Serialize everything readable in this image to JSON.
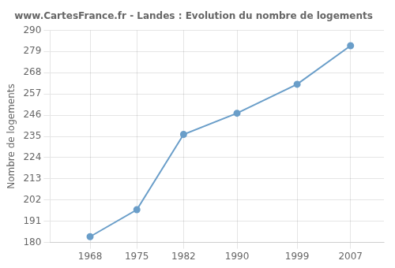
{
  "chart_data": {
    "type": "line",
    "title": "www.CartesFrance.fr - Landes : Evolution du nombre de logements",
    "ylabel": "Nombre de logements",
    "x": [
      1968,
      1975,
      1982,
      1990,
      1999,
      2007
    ],
    "values": [
      183,
      197,
      236,
      247,
      262,
      282
    ],
    "color": "#6a9ec9",
    "marker": "circle",
    "xlim": [
      1962,
      2012
    ],
    "ylim": [
      180,
      290
    ],
    "xticks": [
      1968,
      1975,
      1982,
      1990,
      1999,
      2007
    ],
    "yticks": [
      180,
      191,
      202,
      213,
      224,
      235,
      246,
      257,
      268,
      279,
      290
    ],
    "grid": true
  }
}
